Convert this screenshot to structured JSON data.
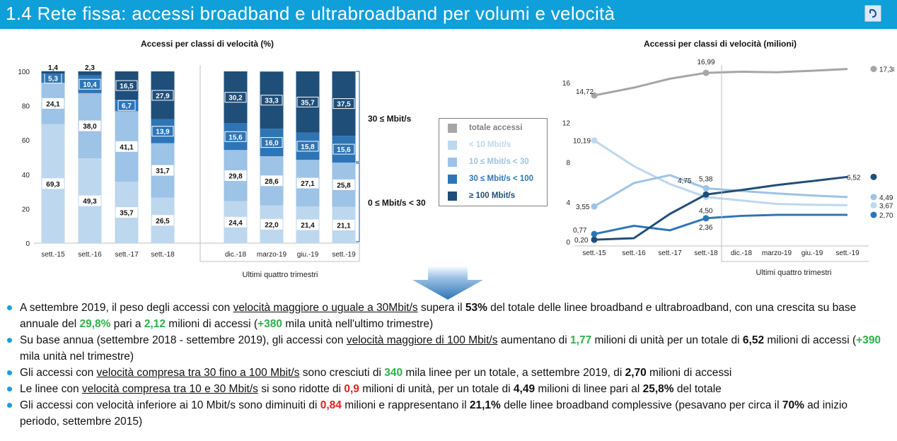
{
  "header": {
    "title": "1.4 Rete fissa: accessi broadband e ultrabroadband per volumi e velocità"
  },
  "colors": {
    "header": "#0f9fd9",
    "lt10": "#bdd7ee",
    "r10_30": "#9dc3e6",
    "r30_100": "#2e75b6",
    "ge100": "#1f4e79",
    "totale": "#a6a6a6"
  },
  "left_chart": {
    "title": "Accessi per classi di velocità (%)",
    "group_label": "Ultimi quattro trimestri",
    "bracket_top": "30 ≤ Mbit/s",
    "bracket_bottom": "0 ≤ Mbit/s < 30"
  },
  "legend": {
    "items": [
      "totale accessi",
      "< 10 Mbit/s",
      "10 ≤ Mbit/s < 30",
      "30 ≤ Mbit/s < 100",
      "≥ 100 Mbit/s"
    ]
  },
  "right_chart": {
    "title": "Accessi per classi di velocità (milioni)",
    "group_label": "Ultimi quattro trimestri"
  },
  "chart_data": [
    {
      "type": "bar",
      "title": "Accessi per classi di velocità (%)",
      "stacked": true,
      "categories": [
        "sett.-15",
        "sett.-16",
        "sett.-17",
        "sett.-18",
        "dic.-18",
        "marzo-19",
        "giu.-19",
        "sett.-19"
      ],
      "ylim": [
        0,
        100
      ],
      "yticks": [
        0,
        20,
        40,
        60,
        80,
        100
      ],
      "series": [
        {
          "name": "< 10 Mbit/s",
          "values": [
            69.3,
            49.3,
            35.7,
            26.5,
            24.4,
            22.0,
            21.4,
            21.1
          ],
          "labels": [
            "69,3",
            "49,3",
            "35,7",
            "26,5",
            "24,4",
            "22,0",
            "21,4",
            "21,1"
          ]
        },
        {
          "name": "10 ≤ Mbit/s < 30",
          "values": [
            24.1,
            38.0,
            41.1,
            31.7,
            29.8,
            28.6,
            27.1,
            25.8
          ],
          "labels": [
            "24,1",
            "38,0",
            "41,1",
            "31,7",
            "29,8",
            "28,6",
            "27,1",
            "25,8"
          ]
        },
        {
          "name": "30 ≤ Mbit/s < 100",
          "values": [
            5.3,
            10.4,
            6.7,
            13.9,
            15.6,
            16.0,
            15.8,
            15.6
          ],
          "labels": [
            "5,3",
            "10,4",
            "6,7",
            "13,9",
            "15,6",
            "16,0",
            "15,8",
            "15,6"
          ]
        },
        {
          "name": "≥ 100 Mbit/s",
          "values": [
            1.4,
            2.3,
            16.5,
            27.9,
            30.2,
            33.3,
            35.7,
            37.5
          ],
          "labels": [
            "1,4",
            "2,3",
            "16,5",
            "27,9",
            "30,2",
            "33,3",
            "35,7",
            "37,5"
          ]
        }
      ]
    },
    {
      "type": "line",
      "title": "Accessi per classi di velocità (milioni)",
      "categories": [
        "sett.-15",
        "sett.-16",
        "sett.-17",
        "sett.-18",
        "dic.-18",
        "marzo-19",
        "giu.-19",
        "sett.-19"
      ],
      "ylim": [
        0,
        18
      ],
      "yticks": [
        0,
        4,
        8,
        12,
        16
      ],
      "series": [
        {
          "name": "totale accessi",
          "values": [
            14.72,
            15.5,
            16.4,
            16.99,
            17.1,
            17.05,
            17.2,
            17.38
          ]
        },
        {
          "name": "< 10 Mbit/s",
          "values": [
            10.19,
            7.6,
            5.8,
            4.5,
            4.15,
            3.8,
            3.72,
            3.67
          ]
        },
        {
          "name": "10 ≤ Mbit/s < 30",
          "values": [
            3.55,
            5.9,
            6.7,
            5.38,
            5.1,
            4.85,
            4.65,
            4.49
          ]
        },
        {
          "name": "30 ≤ Mbit/s < 100",
          "values": [
            0.77,
            1.6,
            1.15,
            2.36,
            2.6,
            2.7,
            2.7,
            2.7
          ]
        },
        {
          "name": "≥ 100 Mbit/s",
          "values": [
            0.2,
            0.35,
            2.8,
            4.75,
            5.2,
            5.7,
            6.1,
            6.52
          ]
        }
      ],
      "annotations": [
        {
          "series": 0,
          "index": 0,
          "label": "14,72"
        },
        {
          "series": 0,
          "index": 3,
          "label": "16,99"
        },
        {
          "series": 0,
          "index": 7,
          "label": "17,38"
        },
        {
          "series": 1,
          "index": 0,
          "label": "10,19"
        },
        {
          "series": 1,
          "index": 3,
          "label": "4,50"
        },
        {
          "series": 1,
          "index": 7,
          "label": "3,67"
        },
        {
          "series": 2,
          "index": 0,
          "label": "3,55"
        },
        {
          "series": 2,
          "index": 3,
          "label": "5,38"
        },
        {
          "series": 2,
          "index": 7,
          "label": "4,49"
        },
        {
          "series": 3,
          "index": 0,
          "label": "0,77"
        },
        {
          "series": 3,
          "index": 3,
          "label": "2,36"
        },
        {
          "series": 3,
          "index": 7,
          "label": "2,70"
        },
        {
          "series": 4,
          "index": 0,
          "label": "0,20"
        },
        {
          "series": 4,
          "index": 3,
          "label": "4,75"
        },
        {
          "series": 4,
          "index": 7,
          "label": "6,52"
        }
      ]
    }
  ],
  "bullets": [
    {
      "parts": [
        {
          "t": "A settembre 2019, il peso degli accessi con ",
          "s": ""
        },
        {
          "t": "velocità maggiore o uguale a 30Mbit/s",
          "s": "u"
        },
        {
          "t": " supera il ",
          "s": ""
        },
        {
          "t": "53%",
          "s": "b"
        },
        {
          "t": " del totale delle linee broadband e ultrabroadband, con una crescita su base annuale del ",
          "s": ""
        },
        {
          "t": "29,8%",
          "s": "g"
        },
        {
          "t": " pari a ",
          "s": ""
        },
        {
          "t": "2,12",
          "s": "g"
        },
        {
          "t": " milioni di accessi (",
          "s": ""
        },
        {
          "t": "+380",
          "s": "g"
        },
        {
          "t": " mila unità nell'ultimo trimestre)",
          "s": ""
        }
      ]
    },
    {
      "parts": [
        {
          "t": "Su base annua (settembre 2018 - settembre 2019), gli accessi con  ",
          "s": ""
        },
        {
          "t": "velocità maggiore di 100 Mbit/s",
          "s": "u"
        },
        {
          "t": " aumentano di ",
          "s": ""
        },
        {
          "t": "1,77",
          "s": "g"
        },
        {
          "t": " milioni di unità per un totale di ",
          "s": ""
        },
        {
          "t": "6,52",
          "s": "b"
        },
        {
          "t": " milioni di accessi (",
          "s": ""
        },
        {
          "t": "+390",
          "s": "g"
        },
        {
          "t": " mila unità nel trimestre)",
          "s": ""
        }
      ]
    },
    {
      "parts": [
        {
          "t": "Gli accessi con ",
          "s": ""
        },
        {
          "t": "velocità compresa tra 30 fino a 100 Mbit/s",
          "s": "u"
        },
        {
          "t": " sono cresciuti di ",
          "s": ""
        },
        {
          "t": "340",
          "s": "g"
        },
        {
          "t": " mila linee per un totale, a settembre 2019, di ",
          "s": ""
        },
        {
          "t": "2,70",
          "s": "b"
        },
        {
          "t": " milioni di accessi",
          "s": ""
        }
      ]
    },
    {
      "parts": [
        {
          "t": "Le linee con ",
          "s": ""
        },
        {
          "t": "velocità compresa tra 10 e 30 Mbit/s",
          "s": "u"
        },
        {
          "t": " si sono ridotte di ",
          "s": ""
        },
        {
          "t": "0,9",
          "s": "r"
        },
        {
          "t": " milioni di unità, per un totale di ",
          "s": ""
        },
        {
          "t": "4,49",
          "s": "b"
        },
        {
          "t": " milioni di linee pari al ",
          "s": ""
        },
        {
          "t": "25,8%",
          "s": "b"
        },
        {
          "t": " del totale",
          "s": ""
        }
      ]
    },
    {
      "parts": [
        {
          "t": "Gli accessi con velocità inferiore ai 10 Mbit/s sono diminuiti di ",
          "s": ""
        },
        {
          "t": "0,84",
          "s": "r"
        },
        {
          "t": " milioni e rappresentano il ",
          "s": ""
        },
        {
          "t": "21,1%",
          "s": "b"
        },
        {
          "t": " delle linee broadband complessive (pesavano per circa il ",
          "s": ""
        },
        {
          "t": "70%",
          "s": "b"
        },
        {
          "t": " ad inizio periodo, settembre 2015)",
          "s": ""
        }
      ]
    }
  ]
}
